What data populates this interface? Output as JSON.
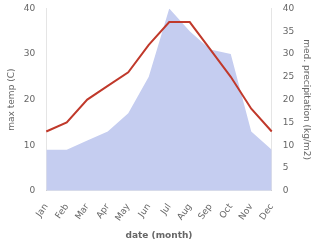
{
  "chart_data": {
    "type": "line",
    "categories": [
      "Jan",
      "Feb",
      "Mar",
      "Apr",
      "May",
      "Jun",
      "Jul",
      "Aug",
      "Sep",
      "Oct",
      "Nov",
      "Dec"
    ],
    "series": [
      {
        "type": "line",
        "color": "#c0392b",
        "values": [
          13,
          15,
          20,
          23,
          26,
          32,
          37,
          37,
          31,
          25,
          18,
          13
        ]
      },
      {
        "type": "area",
        "color": "#c5cdf0",
        "axis": "y2",
        "values": [
          9,
          9,
          11,
          13,
          17,
          25,
          40,
          35,
          31,
          30,
          13,
          9
        ]
      }
    ],
    "xlabel": "date (month)",
    "ylabel": "max temp (C)",
    "y2label": "med. precipitation (kg/m2)",
    "ylim": [
      0,
      40
    ],
    "yticks": [
      0,
      10,
      20,
      30,
      40
    ],
    "y2lim": [
      0,
      40
    ],
    "y2ticks": [
      0,
      5,
      10,
      15,
      20,
      25,
      30,
      35,
      40
    ],
    "grid": false
  }
}
